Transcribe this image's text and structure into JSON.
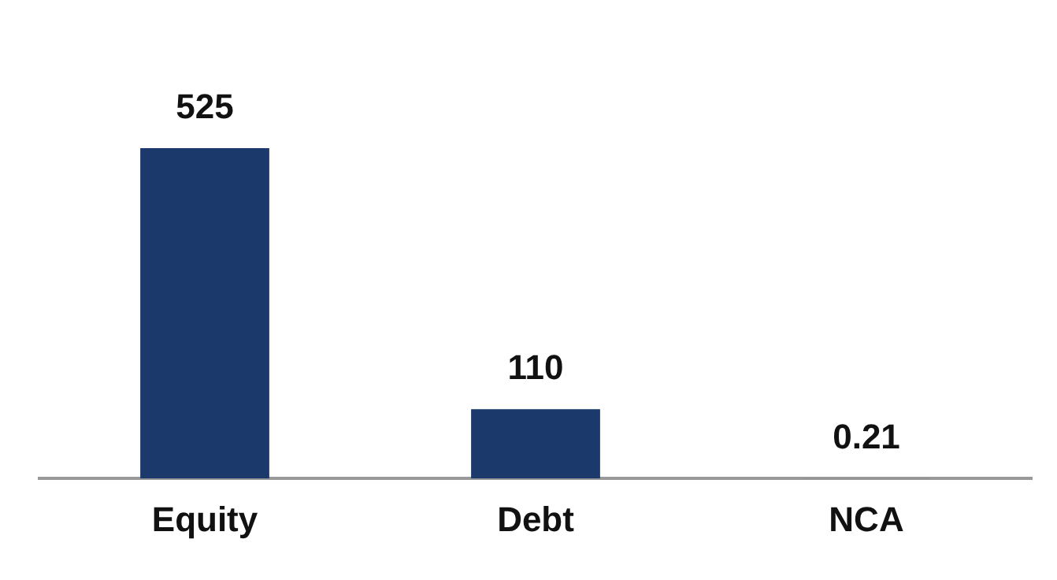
{
  "chart_data": {
    "type": "bar",
    "categories": [
      "Equity",
      "Debt",
      "NCA"
    ],
    "values": [
      525,
      110,
      0.21
    ],
    "color": "#1b3a6b",
    "data_labels": true,
    "grid": false,
    "legend": false,
    "tick_labels": "x"
  }
}
